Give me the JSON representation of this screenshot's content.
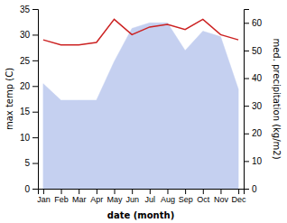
{
  "chart_data": {
    "type": "line",
    "x_label": "date (month)",
    "y_label": "max temp (C)",
    "y2_label": "med. precipitation (kg/m2)",
    "categories": [
      "Jan",
      "Feb",
      "Mar",
      "Apr",
      "May",
      "Jun",
      "Jul",
      "Aug",
      "Sep",
      "Oct",
      "Nov",
      "Dec"
    ],
    "series": [
      {
        "type": "area",
        "axis": "y2",
        "color": "#c5d0f0",
        "values": [
          38,
          32,
          32,
          32,
          46,
          58,
          60,
          60,
          50,
          57,
          55,
          36
        ]
      },
      {
        "type": "line",
        "color": "#cc2222",
        "values": [
          29.0,
          28.0,
          28.0,
          28.5,
          33.0,
          30.0,
          31.5,
          32.0,
          31.0,
          33.0,
          30.0,
          29.0
        ]
      }
    ],
    "ylim": [
      0,
      35
    ],
    "yticks": [
      0,
      5,
      10,
      15,
      20,
      25,
      30,
      35
    ],
    "y2lim": [
      0,
      65
    ],
    "y2ticks": [
      0,
      10,
      20,
      30,
      40,
      50,
      60
    ]
  }
}
